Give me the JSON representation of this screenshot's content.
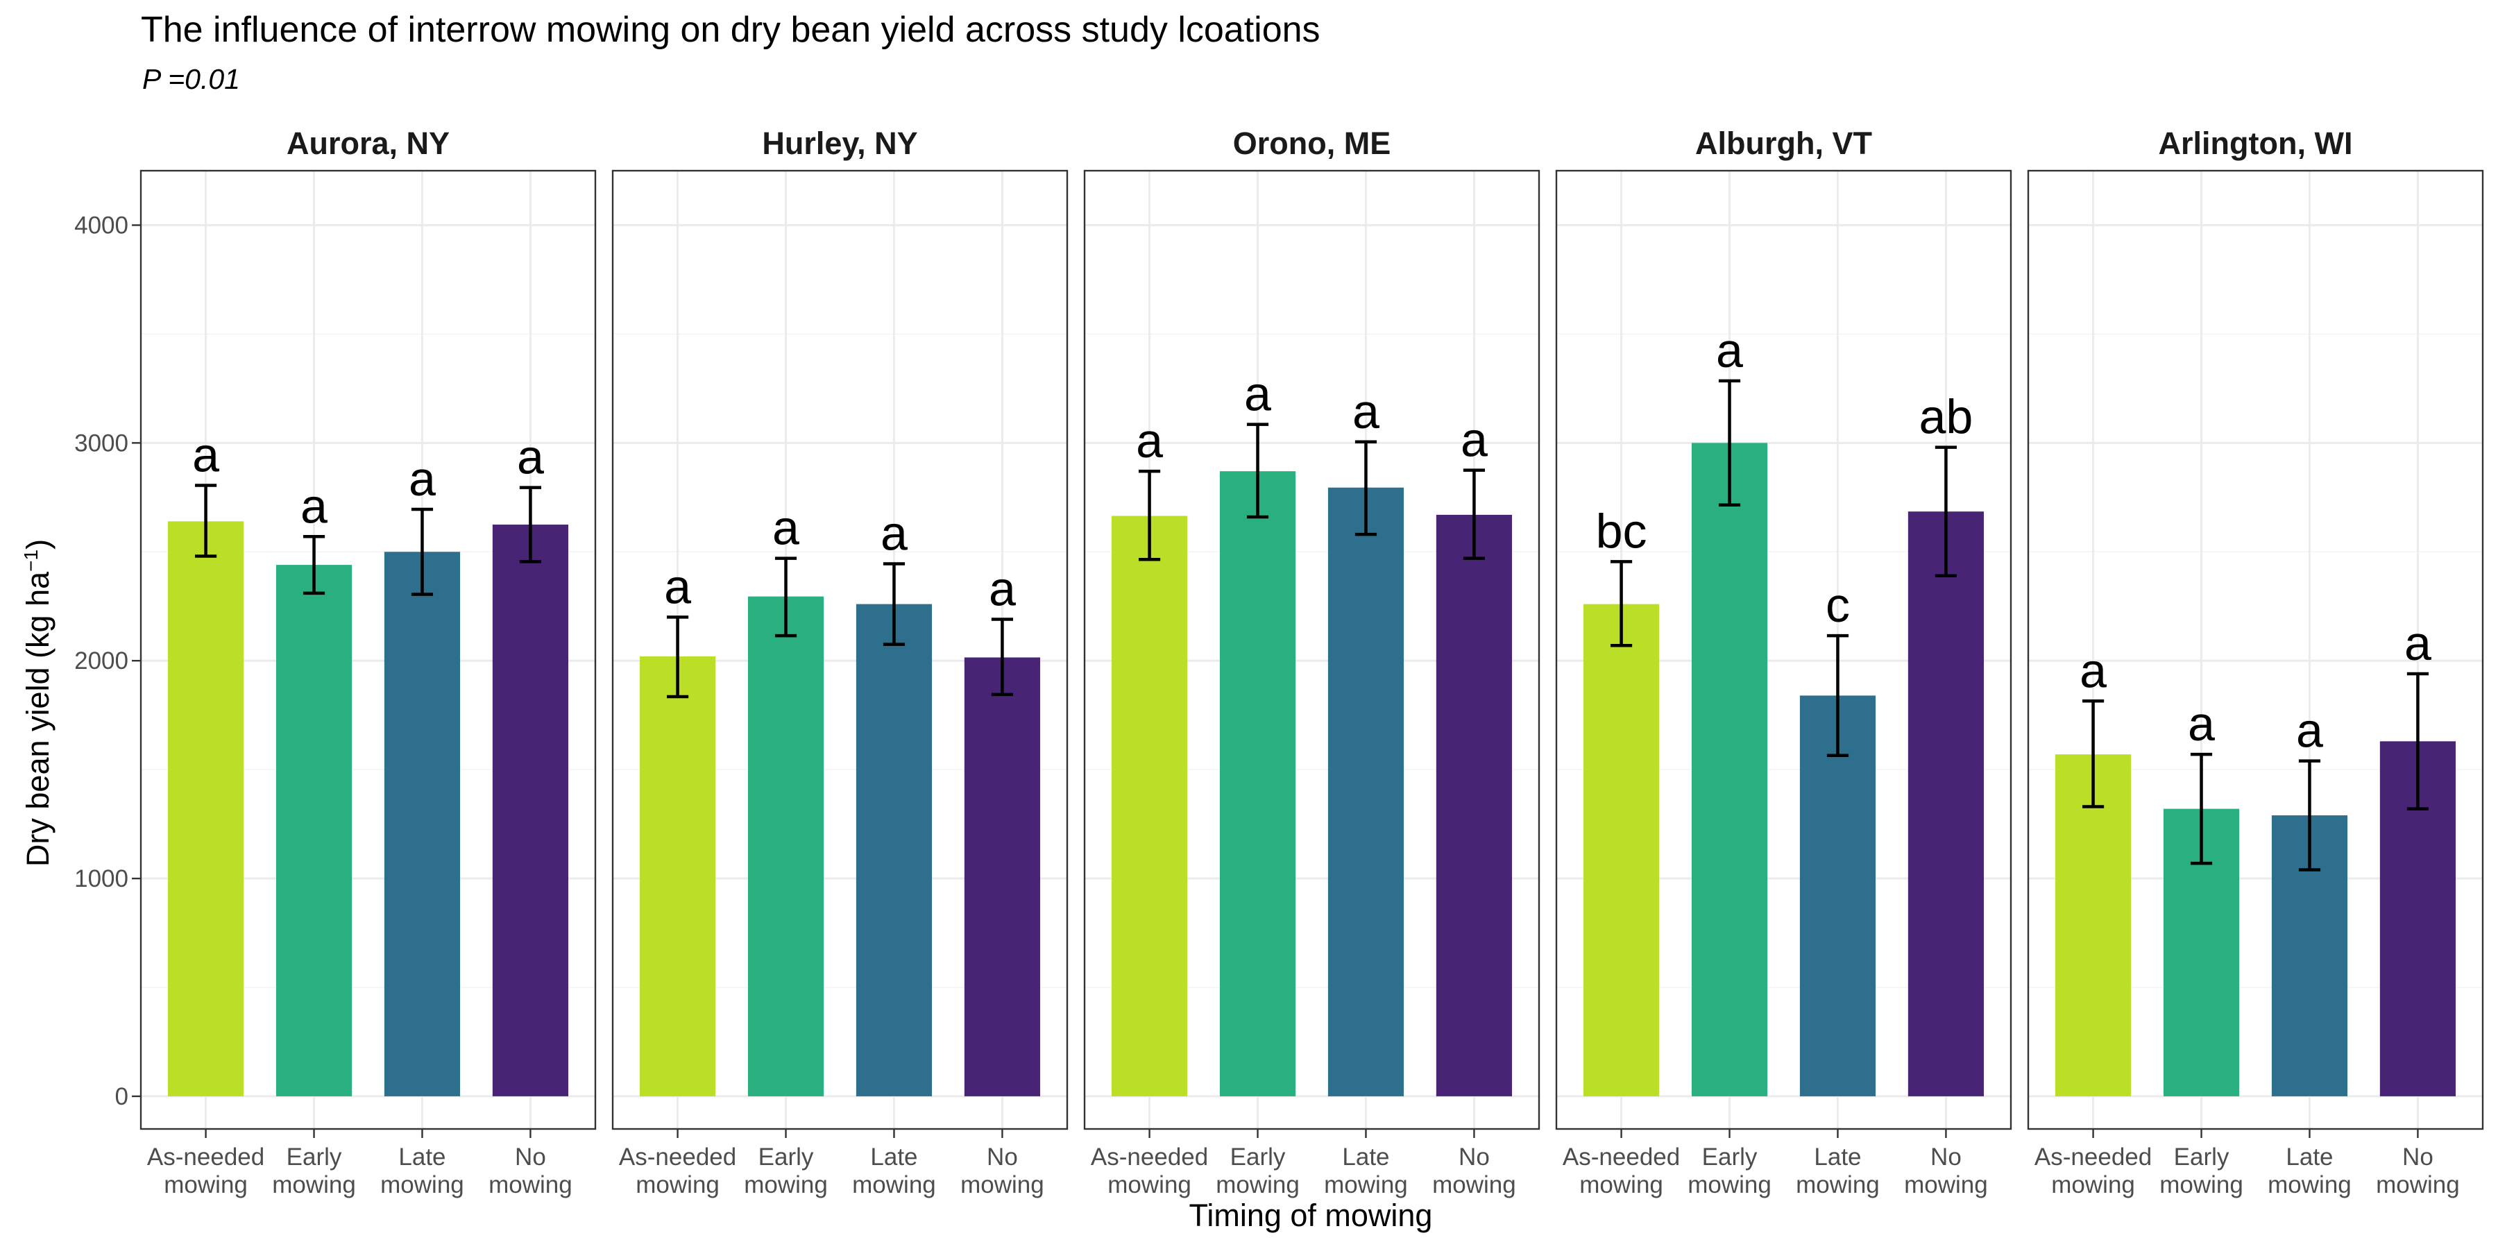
{
  "chart_data": {
    "type": "bar",
    "title": "The influence of interrow mowing on dry bean yield across study lcoations",
    "subtitle": "P =0.01",
    "xlabel": "Timing of mowing",
    "ylabel": "Dry bean yield (kg ha",
    "ylabel_superscript": "−1",
    "ylabel_suffix": ")",
    "ylim": [
      -150,
      4250
    ],
    "yticks": [
      "0",
      "1000",
      "2000",
      "3000",
      "4000"
    ],
    "ytick_values": [
      0,
      1000,
      2000,
      3000,
      4000
    ],
    "categories": [
      [
        "As-needed",
        "mowing"
      ],
      [
        "Early",
        "mowing"
      ],
      [
        "Late",
        "mowing"
      ],
      [
        "No",
        "mowing"
      ]
    ],
    "colors": [
      "#bbdf27",
      "#2ab07f",
      "#2e6f8e",
      "#482475"
    ],
    "grid": true,
    "legend": "none",
    "panels": [
      {
        "name": "Aurora, NY",
        "values": [
          2640,
          2440,
          2500,
          2625
        ],
        "error_low": [
          2480,
          2310,
          2305,
          2455
        ],
        "error_high": [
          2805,
          2570,
          2695,
          2795
        ],
        "letters": [
          "a",
          "a",
          "a",
          "a"
        ]
      },
      {
        "name": "Hurley, NY",
        "values": [
          2020,
          2295,
          2260,
          2015
        ],
        "error_low": [
          1835,
          2115,
          2075,
          1845
        ],
        "error_high": [
          2200,
          2470,
          2445,
          2190
        ],
        "letters": [
          "a",
          "a",
          "a",
          "a"
        ]
      },
      {
        "name": "Orono, ME",
        "values": [
          2665,
          2870,
          2795,
          2670
        ],
        "error_low": [
          2465,
          2660,
          2580,
          2470
        ],
        "error_high": [
          2870,
          3085,
          3005,
          2875
        ],
        "letters": [
          "a",
          "a",
          "a",
          "a"
        ]
      },
      {
        "name": "Alburgh, VT",
        "values": [
          2260,
          3000,
          1840,
          2685
        ],
        "error_low": [
          2070,
          2715,
          1565,
          2390
        ],
        "error_high": [
          2455,
          3285,
          2115,
          2980
        ],
        "letters": [
          "bc",
          "a",
          "c",
          "ab"
        ]
      },
      {
        "name": "Arlington, WI",
        "values": [
          1570,
          1320,
          1290,
          1630
        ],
        "error_low": [
          1330,
          1070,
          1040,
          1320
        ],
        "error_high": [
          1815,
          1570,
          1540,
          1940
        ],
        "letters": [
          "a",
          "a",
          "a",
          "a"
        ]
      }
    ]
  }
}
